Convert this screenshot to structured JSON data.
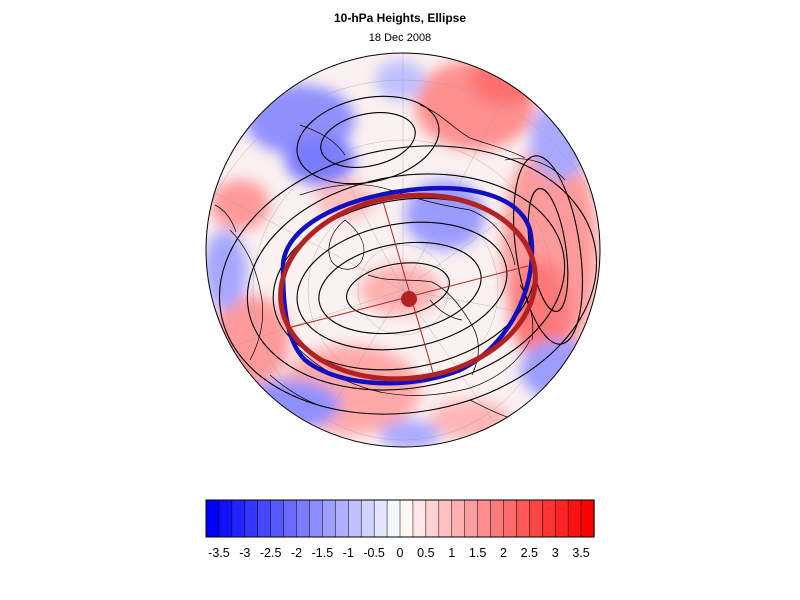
{
  "title": "10-hPa Heights, Ellipse",
  "subtitle": "18 Dec 2008",
  "map": {
    "projection": "polar-stereographic",
    "hemisphere": "north",
    "overlays": [
      "height-anomaly-shading",
      "height-contours",
      "coastlines",
      "graticule",
      "vortex-edge-contour",
      "fitted-ellipse",
      "ellipse-center",
      "ellipse-axes"
    ],
    "colors": {
      "vortex_edge": "#1010c0",
      "ellipse": "#b22222",
      "contour": "#000000",
      "coast": "#000000"
    }
  },
  "colorbar": {
    "min": -3.75,
    "max": 3.75,
    "step": 0.25,
    "tick_labels": [
      "-3.5",
      "-3",
      "-2.5",
      "-2",
      "-1.5",
      "-1",
      "-0.5",
      "0",
      "0.5",
      "1",
      "1.5",
      "2",
      "2.5",
      "3",
      "3.5"
    ],
    "tick_values": [
      -3.5,
      -3,
      -2.5,
      -2,
      -1.5,
      -1,
      -0.5,
      0,
      0.5,
      1,
      1.5,
      2,
      2.5,
      3,
      3.5
    ],
    "low_color": "#0000ff",
    "mid_color": "#ffffff",
    "high_color": "#ff0000"
  }
}
